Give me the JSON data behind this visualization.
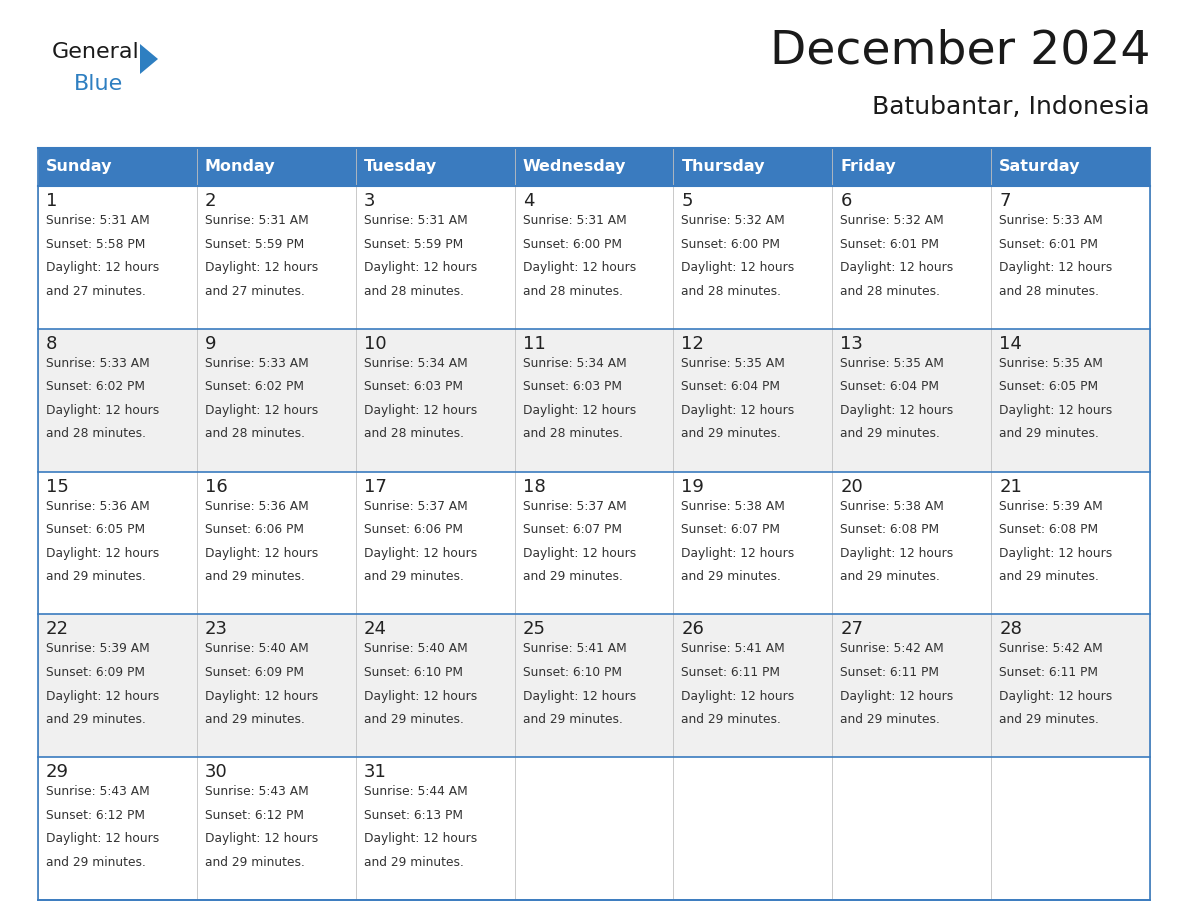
{
  "title": "December 2024",
  "subtitle": "Batubantar, Indonesia",
  "header_color": "#3a7bbf",
  "header_text_color": "#ffffff",
  "cell_bg_white": "#ffffff",
  "cell_bg_gray": "#f0f0f0",
  "border_color": "#3a7bbf",
  "inner_line_color": "#c0c0c0",
  "day_headers": [
    "Sunday",
    "Monday",
    "Tuesday",
    "Wednesday",
    "Thursday",
    "Friday",
    "Saturday"
  ],
  "weeks": [
    [
      {
        "day": 1,
        "sunrise": "5:31 AM",
        "sunset": "5:58 PM",
        "daylight_line1": "Daylight: 12 hours",
        "daylight_line2": "and 27 minutes."
      },
      {
        "day": 2,
        "sunrise": "5:31 AM",
        "sunset": "5:59 PM",
        "daylight_line1": "Daylight: 12 hours",
        "daylight_line2": "and 27 minutes."
      },
      {
        "day": 3,
        "sunrise": "5:31 AM",
        "sunset": "5:59 PM",
        "daylight_line1": "Daylight: 12 hours",
        "daylight_line2": "and 28 minutes."
      },
      {
        "day": 4,
        "sunrise": "5:31 AM",
        "sunset": "6:00 PM",
        "daylight_line1": "Daylight: 12 hours",
        "daylight_line2": "and 28 minutes."
      },
      {
        "day": 5,
        "sunrise": "5:32 AM",
        "sunset": "6:00 PM",
        "daylight_line1": "Daylight: 12 hours",
        "daylight_line2": "and 28 minutes."
      },
      {
        "day": 6,
        "sunrise": "5:32 AM",
        "sunset": "6:01 PM",
        "daylight_line1": "Daylight: 12 hours",
        "daylight_line2": "and 28 minutes."
      },
      {
        "day": 7,
        "sunrise": "5:33 AM",
        "sunset": "6:01 PM",
        "daylight_line1": "Daylight: 12 hours",
        "daylight_line2": "and 28 minutes."
      }
    ],
    [
      {
        "day": 8,
        "sunrise": "5:33 AM",
        "sunset": "6:02 PM",
        "daylight_line1": "Daylight: 12 hours",
        "daylight_line2": "and 28 minutes."
      },
      {
        "day": 9,
        "sunrise": "5:33 AM",
        "sunset": "6:02 PM",
        "daylight_line1": "Daylight: 12 hours",
        "daylight_line2": "and 28 minutes."
      },
      {
        "day": 10,
        "sunrise": "5:34 AM",
        "sunset": "6:03 PM",
        "daylight_line1": "Daylight: 12 hours",
        "daylight_line2": "and 28 minutes."
      },
      {
        "day": 11,
        "sunrise": "5:34 AM",
        "sunset": "6:03 PM",
        "daylight_line1": "Daylight: 12 hours",
        "daylight_line2": "and 28 minutes."
      },
      {
        "day": 12,
        "sunrise": "5:35 AM",
        "sunset": "6:04 PM",
        "daylight_line1": "Daylight: 12 hours",
        "daylight_line2": "and 29 minutes."
      },
      {
        "day": 13,
        "sunrise": "5:35 AM",
        "sunset": "6:04 PM",
        "daylight_line1": "Daylight: 12 hours",
        "daylight_line2": "and 29 minutes."
      },
      {
        "day": 14,
        "sunrise": "5:35 AM",
        "sunset": "6:05 PM",
        "daylight_line1": "Daylight: 12 hours",
        "daylight_line2": "and 29 minutes."
      }
    ],
    [
      {
        "day": 15,
        "sunrise": "5:36 AM",
        "sunset": "6:05 PM",
        "daylight_line1": "Daylight: 12 hours",
        "daylight_line2": "and 29 minutes."
      },
      {
        "day": 16,
        "sunrise": "5:36 AM",
        "sunset": "6:06 PM",
        "daylight_line1": "Daylight: 12 hours",
        "daylight_line2": "and 29 minutes."
      },
      {
        "day": 17,
        "sunrise": "5:37 AM",
        "sunset": "6:06 PM",
        "daylight_line1": "Daylight: 12 hours",
        "daylight_line2": "and 29 minutes."
      },
      {
        "day": 18,
        "sunrise": "5:37 AM",
        "sunset": "6:07 PM",
        "daylight_line1": "Daylight: 12 hours",
        "daylight_line2": "and 29 minutes."
      },
      {
        "day": 19,
        "sunrise": "5:38 AM",
        "sunset": "6:07 PM",
        "daylight_line1": "Daylight: 12 hours",
        "daylight_line2": "and 29 minutes."
      },
      {
        "day": 20,
        "sunrise": "5:38 AM",
        "sunset": "6:08 PM",
        "daylight_line1": "Daylight: 12 hours",
        "daylight_line2": "and 29 minutes."
      },
      {
        "day": 21,
        "sunrise": "5:39 AM",
        "sunset": "6:08 PM",
        "daylight_line1": "Daylight: 12 hours",
        "daylight_line2": "and 29 minutes."
      }
    ],
    [
      {
        "day": 22,
        "sunrise": "5:39 AM",
        "sunset": "6:09 PM",
        "daylight_line1": "Daylight: 12 hours",
        "daylight_line2": "and 29 minutes."
      },
      {
        "day": 23,
        "sunrise": "5:40 AM",
        "sunset": "6:09 PM",
        "daylight_line1": "Daylight: 12 hours",
        "daylight_line2": "and 29 minutes."
      },
      {
        "day": 24,
        "sunrise": "5:40 AM",
        "sunset": "6:10 PM",
        "daylight_line1": "Daylight: 12 hours",
        "daylight_line2": "and 29 minutes."
      },
      {
        "day": 25,
        "sunrise": "5:41 AM",
        "sunset": "6:10 PM",
        "daylight_line1": "Daylight: 12 hours",
        "daylight_line2": "and 29 minutes."
      },
      {
        "day": 26,
        "sunrise": "5:41 AM",
        "sunset": "6:11 PM",
        "daylight_line1": "Daylight: 12 hours",
        "daylight_line2": "and 29 minutes."
      },
      {
        "day": 27,
        "sunrise": "5:42 AM",
        "sunset": "6:11 PM",
        "daylight_line1": "Daylight: 12 hours",
        "daylight_line2": "and 29 minutes."
      },
      {
        "day": 28,
        "sunrise": "5:42 AM",
        "sunset": "6:11 PM",
        "daylight_line1": "Daylight: 12 hours",
        "daylight_line2": "and 29 minutes."
      }
    ],
    [
      {
        "day": 29,
        "sunrise": "5:43 AM",
        "sunset": "6:12 PM",
        "daylight_line1": "Daylight: 12 hours",
        "daylight_line2": "and 29 minutes."
      },
      {
        "day": 30,
        "sunrise": "5:43 AM",
        "sunset": "6:12 PM",
        "daylight_line1": "Daylight: 12 hours",
        "daylight_line2": "and 29 minutes."
      },
      {
        "day": 31,
        "sunrise": "5:44 AM",
        "sunset": "6:13 PM",
        "daylight_line1": "Daylight: 12 hours",
        "daylight_line2": "and 29 minutes."
      },
      null,
      null,
      null,
      null
    ]
  ],
  "title_fontsize": 34,
  "subtitle_fontsize": 18,
  "header_fontsize": 11.5,
  "day_num_fontsize": 13,
  "cell_text_fontsize": 8.8,
  "logo_general_color": "#1a1a1a",
  "logo_blue_color": "#2e7fc1"
}
